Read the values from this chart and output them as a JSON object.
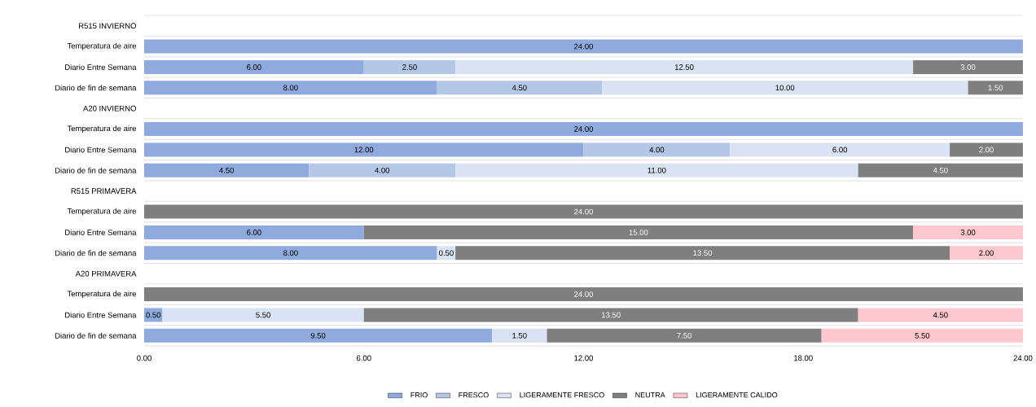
{
  "chart_data": {
    "type": "bar",
    "orientation": "horizontal",
    "stacked": true,
    "grid": "y",
    "legend": "bottom",
    "categories": [
      "R515 INVIERNO",
      "Temperatura de aire",
      "Diario Entre Semana",
      "Diario de fin de semana",
      "A20 INVIERNO",
      "Temperatura de aire",
      "Diario Entre Semana",
      "Diario de fin de semana",
      "R515 PRIMAVERA",
      "Temperatura de aire",
      "Diario Entre Semana",
      "Diario de fin de semana",
      "A20 PRIMAVERA",
      "Temperatura de aire",
      "Diario Entre Semana",
      "Diario de fin de semana"
    ],
    "xlim": [
      0,
      24
    ],
    "xticks": [
      {
        "value": 0,
        "label": "0.00"
      },
      {
        "value": 6,
        "label": "6.00"
      },
      {
        "value": 12,
        "label": "12.00"
      },
      {
        "value": 18,
        "label": "18.00"
      },
      {
        "value": 24,
        "label": "24.00"
      }
    ],
    "series": [
      {
        "name": "FRIO",
        "color": "#8faadc",
        "values": [
          null,
          24,
          6,
          8,
          null,
          24,
          12,
          4.5,
          null,
          null,
          6,
          8,
          null,
          null,
          0.5,
          9.5
        ],
        "value_labels": [
          null,
          "24.00",
          "6.00",
          "8.00",
          null,
          "24.00",
          "12.00",
          "4.50",
          null,
          null,
          "6.00",
          "8.00",
          null,
          null,
          "0.50",
          "9.50"
        ]
      },
      {
        "name": "FRESCO",
        "color": "#b4c7e7",
        "values": [
          null,
          null,
          2.5,
          4.5,
          null,
          null,
          4,
          4,
          null,
          null,
          null,
          null,
          null,
          null,
          null,
          null
        ],
        "value_labels": [
          null,
          null,
          "2.50",
          "4.50",
          null,
          null,
          "4.00",
          "4.00",
          null,
          null,
          null,
          null,
          null,
          null,
          null,
          null
        ]
      },
      {
        "name": "LIGERAMENTE FRESCO",
        "color": "#dae3f3",
        "values": [
          null,
          null,
          12.5,
          10,
          null,
          null,
          6,
          11,
          null,
          null,
          null,
          0.5,
          null,
          null,
          5.5,
          1.5
        ],
        "value_labels": [
          null,
          null,
          "12.50",
          "10.00",
          null,
          null,
          "6.00",
          "11.00",
          null,
          null,
          null,
          "0.50",
          null,
          null,
          "5.50",
          "1.50"
        ]
      },
      {
        "name": "NEUTRA",
        "color": "#7f7f7f",
        "values": [
          null,
          null,
          3,
          1.5,
          null,
          null,
          2,
          4.5,
          null,
          24,
          15,
          13.5,
          null,
          24,
          13.5,
          7.5
        ],
        "value_labels": [
          null,
          null,
          "3.00",
          "1.50",
          null,
          null,
          "2.00",
          "4.50",
          null,
          "24.00",
          "15.00",
          "13.50",
          null,
          "24.00",
          "13.50",
          "7.50"
        ]
      },
      {
        "name": "LIGERAMENTE CALIDO",
        "color": "#ffc7ce",
        "values": [
          null,
          null,
          null,
          null,
          null,
          null,
          null,
          null,
          null,
          null,
          3,
          2,
          null,
          null,
          4.5,
          5.5
        ],
        "value_labels": [
          null,
          null,
          null,
          null,
          null,
          null,
          null,
          null,
          null,
          null,
          "3.00",
          "2.00",
          null,
          null,
          "4.50",
          "5.50"
        ]
      }
    ]
  }
}
